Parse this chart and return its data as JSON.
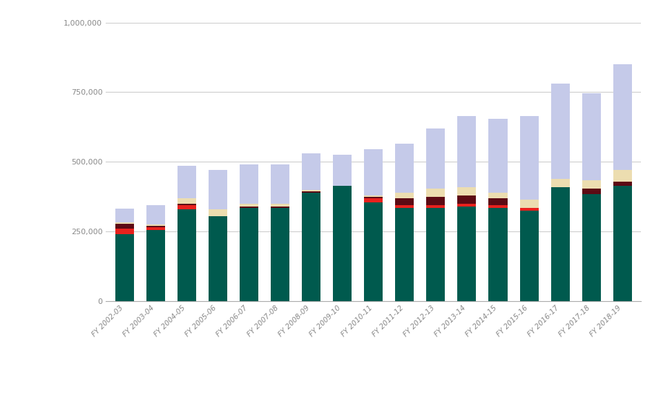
{
  "categories": [
    "FY 2002-03",
    "FY 2003-04",
    "FY 2004-05",
    "FY 2005-06",
    "FY 2006-07",
    "FY 2007-08",
    "FY 2008-09",
    "FY 2009-10",
    "FY 2010-11",
    "FY 2011-12",
    "FY 2012-13",
    "FY 2013-14",
    "FY 2014-15",
    "FY 2015-16",
    "FY 2016-17",
    "FY 2017-18",
    "FY 2018-19"
  ],
  "segments": {
    "dark_green": [
      240000,
      255000,
      330000,
      305000,
      335000,
      335000,
      390000,
      415000,
      355000,
      335000,
      335000,
      340000,
      335000,
      325000,
      410000,
      385000,
      415000
    ],
    "red": [
      20000,
      10000,
      15000,
      0,
      0,
      0,
      0,
      0,
      15000,
      10000,
      10000,
      10000,
      10000,
      10000,
      0,
      0,
      0
    ],
    "dark_maroon": [
      18000,
      5000,
      5000,
      0,
      5000,
      5000,
      5000,
      0,
      5000,
      25000,
      30000,
      30000,
      25000,
      0,
      0,
      20000,
      15000
    ],
    "tan": [
      5000,
      5000,
      20000,
      25000,
      10000,
      10000,
      5000,
      0,
      5000,
      20000,
      30000,
      30000,
      20000,
      30000,
      30000,
      30000,
      40000
    ],
    "light_blue": [
      50000,
      70000,
      115000,
      140000,
      140000,
      140000,
      130000,
      110000,
      165000,
      175000,
      215000,
      255000,
      265000,
      300000,
      340000,
      310000,
      380000
    ]
  },
  "colors": {
    "dark_green": "#005a4e",
    "dark_maroon": "#5c0a14",
    "red": "#e8211d",
    "tan": "#ecddb0",
    "light_blue": "#c5cae9"
  },
  "ylim": [
    0,
    1000000
  ],
  "yticks": [
    0,
    250000,
    500000,
    750000,
    1000000
  ],
  "background_color": "#ffffff",
  "grid_color": "#cccccc"
}
